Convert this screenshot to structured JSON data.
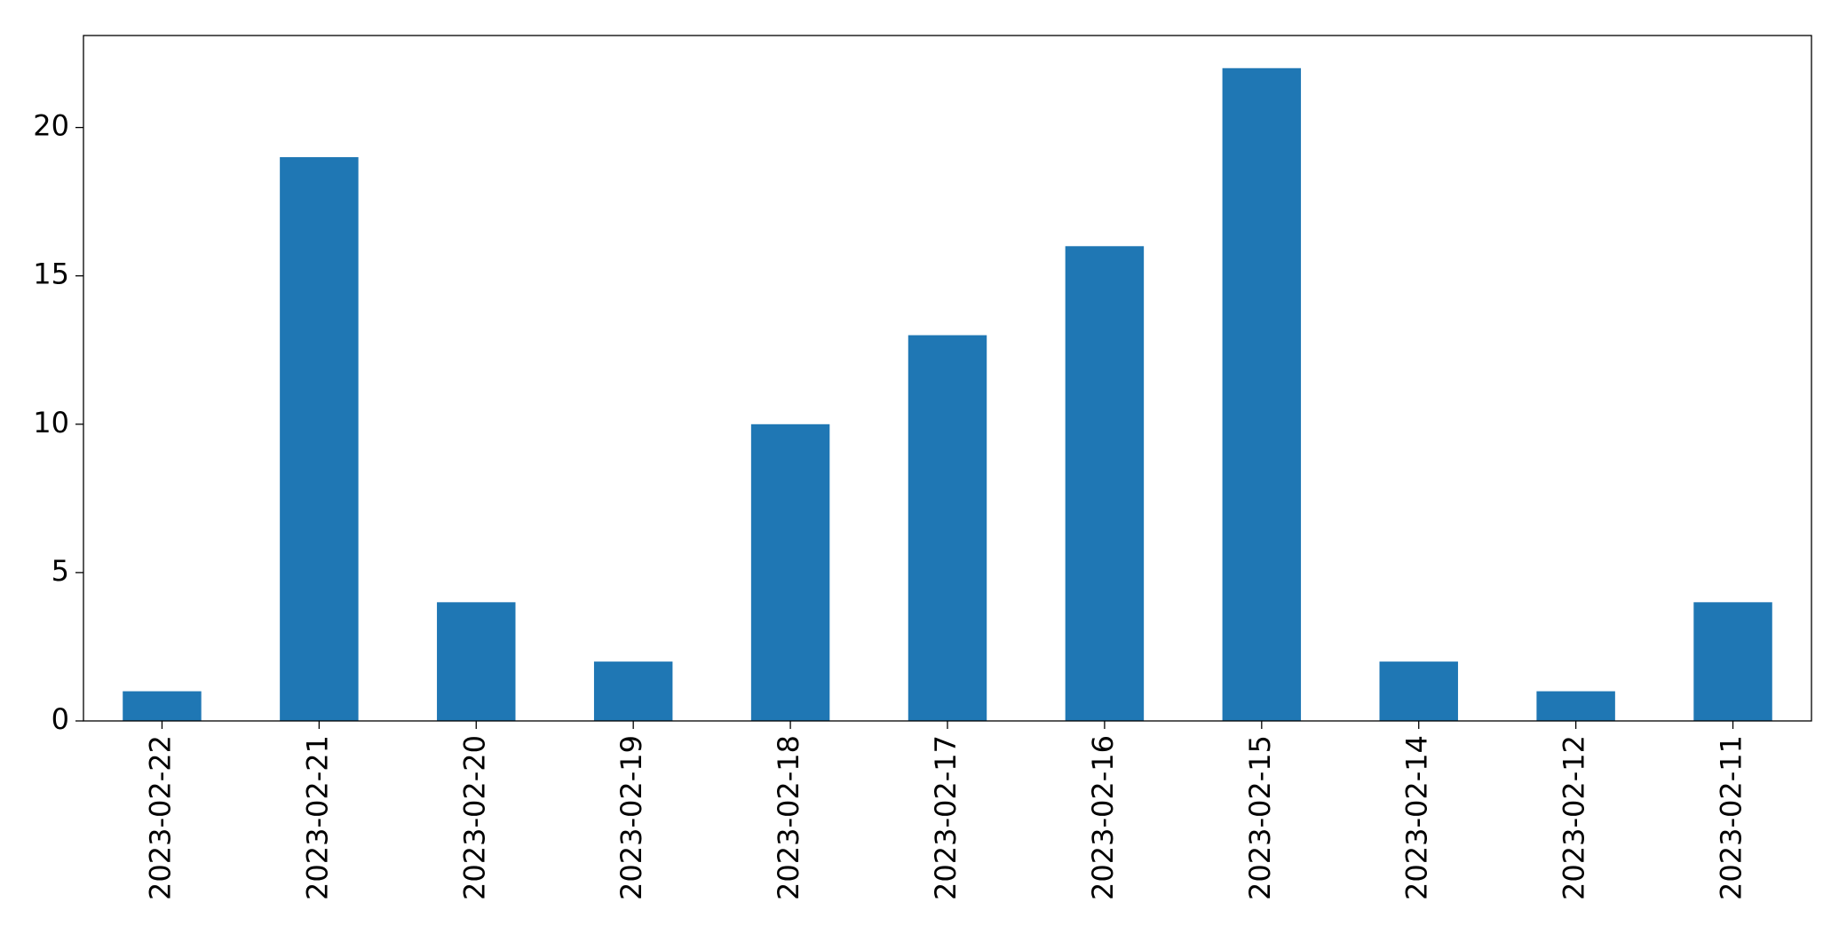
{
  "chart_data": {
    "type": "bar",
    "categories": [
      "2023-02-22",
      "2023-02-21",
      "2023-02-20",
      "2023-02-19",
      "2023-02-18",
      "2023-02-17",
      "2023-02-16",
      "2023-02-15",
      "2023-02-14",
      "2023-02-12",
      "2023-02-11"
    ],
    "values": [
      1,
      19,
      4,
      2,
      10,
      13,
      16,
      22,
      2,
      1,
      4
    ],
    "color": "#1f77b4",
    "ylim": [
      0,
      23.1
    ],
    "yticks": [
      0,
      5,
      10,
      15,
      20
    ],
    "grid": false
  }
}
